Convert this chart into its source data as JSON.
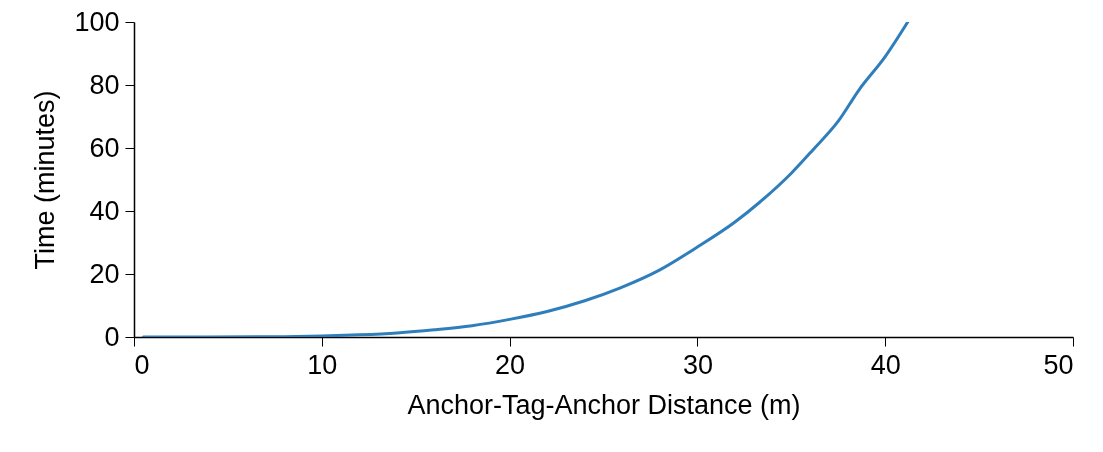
{
  "chart_data": {
    "type": "line",
    "xlabel": "Anchor-Tag-Anchor Distance (m)",
    "ylabel": "Time (minutes)",
    "x": [
      0.5,
      4,
      8,
      10,
      12,
      14,
      16,
      18,
      20,
      22,
      24,
      25.9,
      28,
      29.9,
      32,
      33.3,
      35,
      36.15,
      37.5,
      38.6,
      40,
      41.2
    ],
    "series": [
      {
        "color": "#2e7ebc",
        "values": [
          0,
          0,
          0.1,
          0.3,
          0.7,
          1.3,
          2.3,
          3.6,
          5.6,
          8.1,
          11.5,
          15.6,
          21.3,
          28.2,
          36.5,
          42.7,
          52,
          59.4,
          68.5,
          78.4,
          89,
          100
        ]
      }
    ],
    "xlim": [
      0,
      50
    ],
    "ylim": [
      0,
      100
    ],
    "xticks": [
      0,
      10,
      20,
      30,
      40,
      50
    ],
    "yticks": [
      0,
      20,
      40,
      60,
      80,
      100
    ],
    "grid": false,
    "marker": "none",
    "line_style": "solid"
  }
}
